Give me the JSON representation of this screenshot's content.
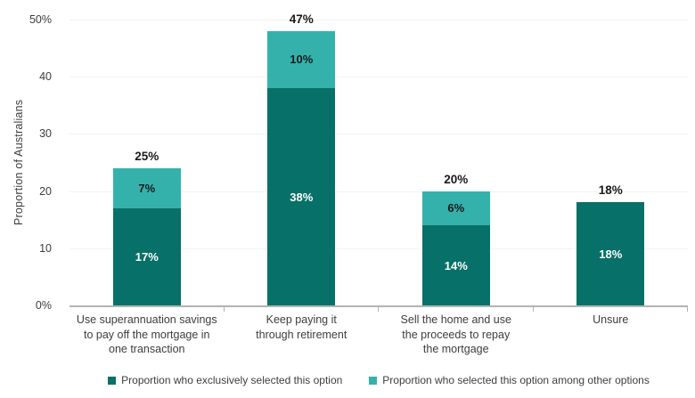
{
  "chart_data": {
    "type": "bar",
    "stacked": true,
    "title": "",
    "xlabel": "",
    "ylabel": "Proportion of Australians",
    "ylim": [
      0,
      50
    ],
    "grid": "horizontal-faint",
    "legend_position": "bottom",
    "yticks": [
      {
        "value": 0,
        "label": "0%"
      },
      {
        "value": 10,
        "label": "10"
      },
      {
        "value": 20,
        "label": "20"
      },
      {
        "value": 30,
        "label": "30"
      },
      {
        "value": 40,
        "label": "40"
      },
      {
        "value": 50,
        "label": "50%"
      }
    ],
    "categories": [
      "Use superannuation savings to pay off the mortgage in one transaction",
      "Keep paying it through retirement",
      "Sell the home and use the proceeds to repay the mortgage",
      "Unsure"
    ],
    "category_labels_display": [
      "Use superannuation savings\nto pay off the mortgage in\none transaction",
      "Keep paying it\nthrough retirement",
      "Sell the home and use\nthe proceeds to repay\nthe mortgage",
      "Unsure"
    ],
    "series": [
      {
        "name": "Proportion who exclusively selected this option",
        "color": "#077068",
        "values": [
          17,
          38,
          14,
          18
        ]
      },
      {
        "name": "Proportion who selected this option among other options",
        "color": "#35b1ac",
        "values": [
          7,
          10,
          6,
          0
        ]
      }
    ],
    "bars": [
      {
        "total": 25,
        "total_label": "25%",
        "exclusive": 17,
        "exclusive_label": "17%",
        "among": 7,
        "among_label": "7%"
      },
      {
        "total": 47,
        "total_label": "47%",
        "exclusive": 38,
        "exclusive_label": "38%",
        "among": 10,
        "among_label": "10%"
      },
      {
        "total": 20,
        "total_label": "20%",
        "exclusive": 14,
        "exclusive_label": "14%",
        "among": 6,
        "among_label": "6%"
      },
      {
        "total": 18,
        "total_label": "18%",
        "exclusive": 18,
        "exclusive_label": "18%",
        "among": 0,
        "among_label": ""
      }
    ],
    "legend": [
      {
        "label": "Proportion who exclusively selected this option",
        "color": "#077068"
      },
      {
        "label": "Proportion who selected this option among other options",
        "color": "#35b1ac"
      }
    ],
    "colors": {
      "exclusive": "#077068",
      "among": "#35b1ac",
      "axis": "#b3b3b3",
      "gridline": "#f3f3f3",
      "axis_text": "#3d3d3d",
      "total_label_text": "#1a1a1a",
      "in_dark_label_text": "#ffffff"
    }
  }
}
